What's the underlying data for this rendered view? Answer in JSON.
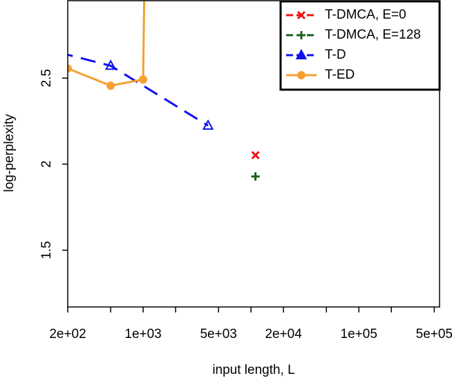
{
  "chart_data": {
    "type": "line",
    "xlabel": "input length, L",
    "ylabel": "log-perplexity",
    "xscale": "log",
    "xlim": [
      200,
      560000
    ],
    "ylim": [
      1.17,
      2.95
    ],
    "xticks": [
      {
        "value": 200,
        "label": "2e+02"
      },
      {
        "value": 1000,
        "label": "1e+03"
      },
      {
        "value": 5000,
        "label": "5e+03"
      },
      {
        "value": 20000,
        "label": "2e+04"
      },
      {
        "value": 100000,
        "label": "1e+05"
      },
      {
        "value": 500000,
        "label": "5e+05"
      }
    ],
    "xminor_ticks": [
      500,
      2000,
      10000,
      50000,
      200000
    ],
    "yticks": [
      1.5,
      2.0,
      2.5
    ],
    "legend": "top-right",
    "series": [
      {
        "name": "T-DMCA, E=0",
        "color": "#ee1111",
        "marker": "x",
        "linestyle": "dashed",
        "x": [
          11000
        ],
        "values": [
          2.052
        ]
      },
      {
        "name": "T-DMCA, E=128",
        "color": "#1a5e1a",
        "marker": "+",
        "linestyle": "dashed",
        "x": [
          11000
        ],
        "values": [
          1.928
        ]
      },
      {
        "name": "T-D",
        "color": "#1010ee",
        "marker": "triangle",
        "linestyle": "dashed",
        "x": [
          100,
          500,
          4000
        ],
        "values": [
          2.684,
          2.572,
          2.224
        ]
      },
      {
        "name": "T-ED",
        "color": "#f5a030",
        "marker": "circle",
        "linestyle": "solid",
        "x": [
          200,
          500,
          1000,
          1050
        ],
        "values": [
          2.556,
          2.456,
          2.492,
          3.5
        ]
      }
    ]
  }
}
